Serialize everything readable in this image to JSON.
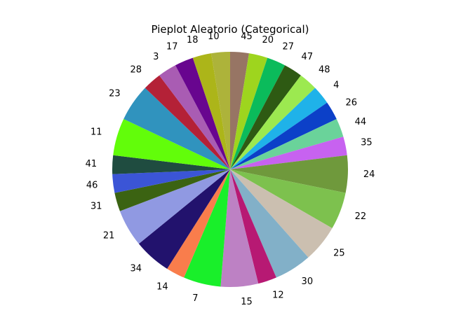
{
  "chart_data": {
    "type": "pie",
    "title": "Pieplot Aleatorio (Categorical)",
    "start_angle_deg": 90,
    "direction": "clockwise",
    "slices": [
      {
        "label": "45",
        "value": 3.1,
        "color": "#977564"
      },
      {
        "label": "20",
        "value": 3.1,
        "color": "#9ed51e"
      },
      {
        "label": "27",
        "value": 3.1,
        "color": "#0bbb5b"
      },
      {
        "label": "47",
        "value": 3.1,
        "color": "#2e5a13"
      },
      {
        "label": "48",
        "value": 3.1,
        "color": "#9ce950"
      },
      {
        "label": "4",
        "value": 3.1,
        "color": "#1fb2e9"
      },
      {
        "label": "26",
        "value": 3.1,
        "color": "#0c40c8"
      },
      {
        "label": "44",
        "value": 3.1,
        "color": "#6ad39a"
      },
      {
        "label": "35",
        "value": 3.1,
        "color": "#c762f0"
      },
      {
        "label": "24",
        "value": 6.2,
        "color": "#6f993c"
      },
      {
        "label": "22",
        "value": 6.2,
        "color": "#7dc14e"
      },
      {
        "label": "25",
        "value": 6.2,
        "color": "#cbbfb0"
      },
      {
        "label": "30",
        "value": 6.2,
        "color": "#82b0c8"
      },
      {
        "label": "12",
        "value": 3.1,
        "color": "#b71973"
      },
      {
        "label": "15",
        "value": 6.2,
        "color": "#bd81c4"
      },
      {
        "label": "7",
        "value": 6.2,
        "color": "#19ef2a"
      },
      {
        "label": "14",
        "value": 3.1,
        "color": "#f97d4c"
      },
      {
        "label": "34",
        "value": 6.2,
        "color": "#22126d"
      },
      {
        "label": "21",
        "value": 6.2,
        "color": "#9099e2"
      },
      {
        "label": "31",
        "value": 3.1,
        "color": "#3b6312"
      },
      {
        "label": "46",
        "value": 3.1,
        "color": "#3b55d6"
      },
      {
        "label": "41",
        "value": 3.1,
        "color": "#1f4c40"
      },
      {
        "label": "11",
        "value": 6.2,
        "color": "#62fd0a"
      },
      {
        "label": "23",
        "value": 6.2,
        "color": "#3093be"
      },
      {
        "label": "28",
        "value": 3.1,
        "color": "#b42137"
      },
      {
        "label": "3",
        "value": 3.1,
        "color": "#a95cb3"
      },
      {
        "label": "17",
        "value": 3.1,
        "color": "#68058f"
      },
      {
        "label": "18",
        "value": 3.1,
        "color": "#acb519"
      },
      {
        "label": "10",
        "value": 3.1,
        "color": "#adb33a"
      }
    ]
  }
}
